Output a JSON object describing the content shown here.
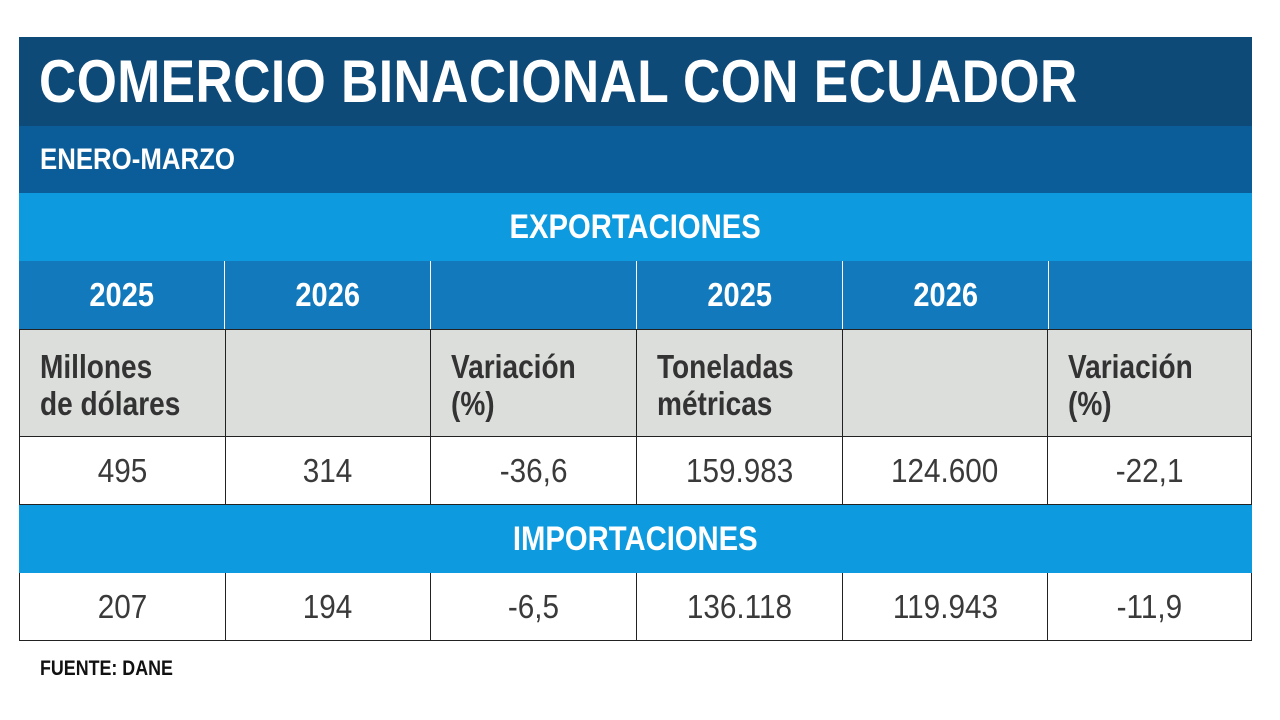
{
  "chart_data": {
    "type": "table",
    "title": "COMERCIO BINACIONAL CON ECUADOR",
    "subtitle": "ENERO-MARZO",
    "columns": [
      {
        "year": "2025",
        "label": "Millones\nde dólares"
      },
      {
        "year": "2026",
        "label": ""
      },
      {
        "year": "",
        "label": "Variación\n(%)"
      },
      {
        "year": "2025",
        "label": "Toneladas\nmétricas"
      },
      {
        "year": "2026",
        "label": ""
      },
      {
        "year": "",
        "label": "Variación\n(%)"
      }
    ],
    "sections": [
      {
        "name": "EXPORTACIONES",
        "values": [
          "495",
          "314",
          "-36,6",
          "159.983",
          "124.600",
          "-22,1"
        ]
      },
      {
        "name": "IMPORTACIONES",
        "values": [
          "207",
          "194",
          "-6,5",
          "136.118",
          "119.943",
          "-11,9"
        ]
      }
    ],
    "source": "FUENTE: DANE"
  },
  "colors": {
    "title_bg": "#0e4a78",
    "subtitle_bg": "#0b5d99",
    "section_bg": "#0d9ade",
    "year_row_bg": "#1279bd",
    "label_row_bg": "#dcdedc"
  }
}
